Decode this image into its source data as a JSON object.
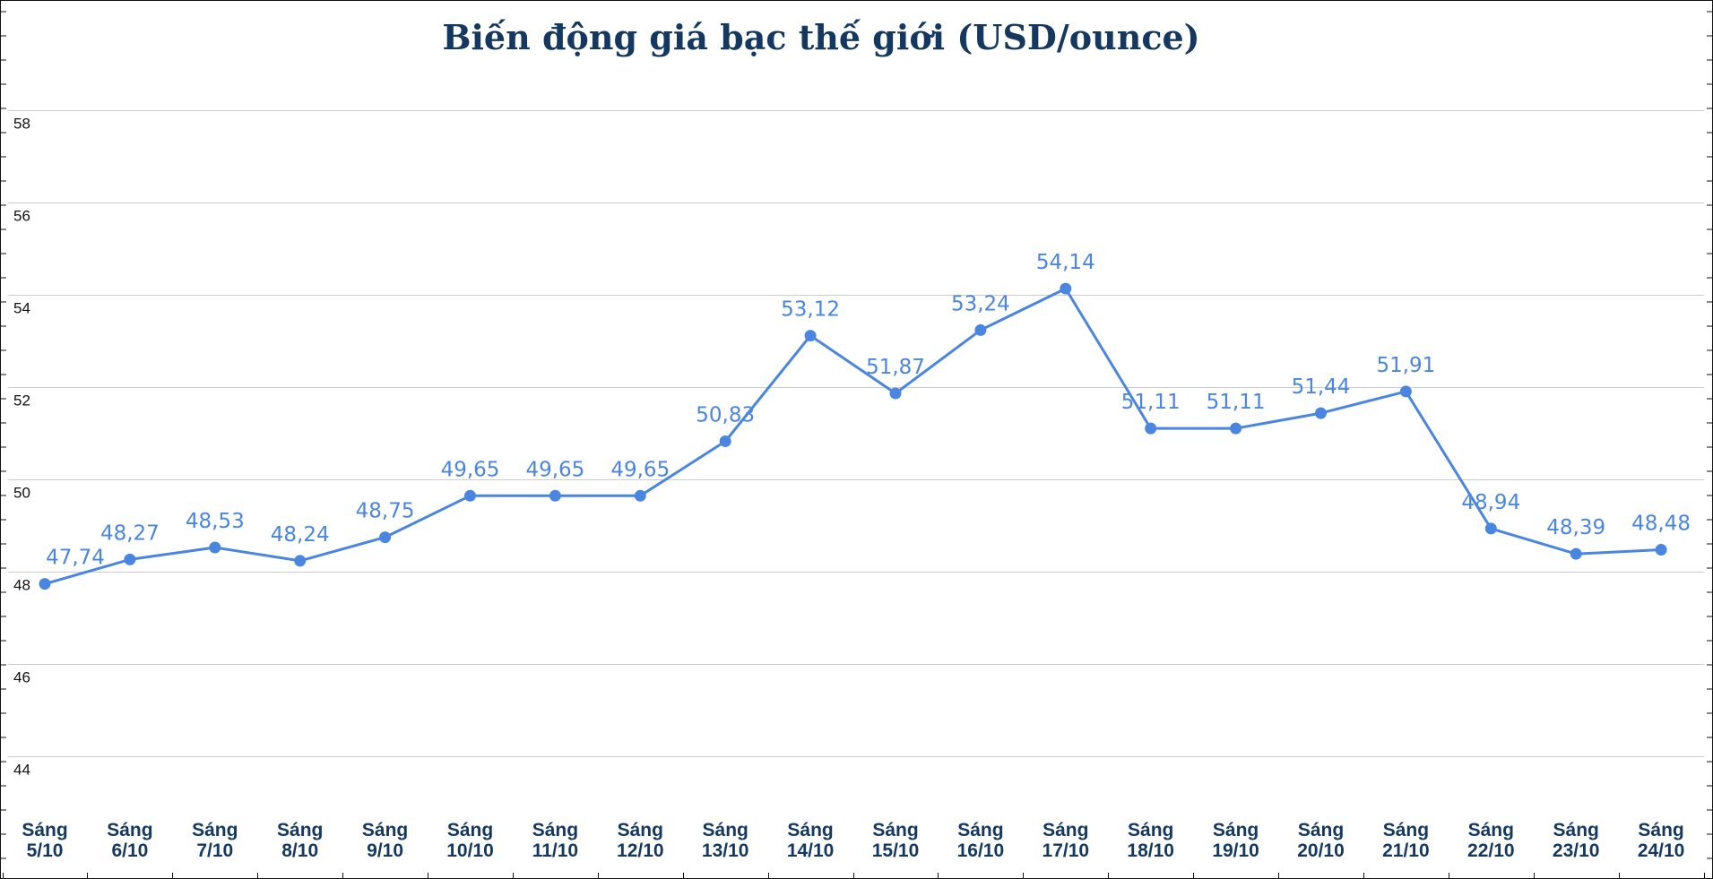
{
  "chart_data": {
    "type": "line",
    "title": "Biến động giá bạc thế giới (USD/ounce)",
    "xlabel": "",
    "ylabel": "",
    "ylim": [
      43.5,
      58.2
    ],
    "y_ticks": [
      "44",
      "46",
      "48",
      "50",
      "52",
      "54",
      "56",
      "58"
    ],
    "y_tick_values": [
      44,
      46,
      48,
      50,
      52,
      54,
      56,
      58
    ],
    "grid": true,
    "legend": "none",
    "categories": [
      [
        "Sáng",
        "5/10"
      ],
      [
        "Sáng",
        "6/10"
      ],
      [
        "Sáng",
        "7/10"
      ],
      [
        "Sáng",
        "8/10"
      ],
      [
        "Sáng",
        "9/10"
      ],
      [
        "Sáng",
        "10/10"
      ],
      [
        "Sáng",
        "11/10"
      ],
      [
        "Sáng",
        "12/10"
      ],
      [
        "Sáng",
        "13/10"
      ],
      [
        "Sáng",
        "14/10"
      ],
      [
        "Sáng",
        "15/10"
      ],
      [
        "Sáng",
        "16/10"
      ],
      [
        "Sáng",
        "17/10"
      ],
      [
        "Sáng",
        "18/10"
      ],
      [
        "Sáng",
        "19/10"
      ],
      [
        "Sáng",
        "20/10"
      ],
      [
        "Sáng",
        "21/10"
      ],
      [
        "Sáng",
        "22/10"
      ],
      [
        "Sáng",
        "23/10"
      ],
      [
        "Sáng",
        "24/10"
      ]
    ],
    "series": [
      {
        "values": [
          47.74,
          48.27,
          48.53,
          48.24,
          48.75,
          49.65,
          49.65,
          49.65,
          50.83,
          53.12,
          51.87,
          53.24,
          54.14,
          51.11,
          51.11,
          51.44,
          51.91,
          48.94,
          48.39,
          48.48
        ],
        "labels": [
          "47,74",
          "48,27",
          "48,53",
          "48,24",
          "48,75",
          "49,65",
          "49,65",
          "49,65",
          "50,83",
          "53,12",
          "51,87",
          "53,24",
          "54,14",
          "51,11",
          "51,11",
          "51,44",
          "51,91",
          "48,94",
          "48,39",
          "48,48"
        ],
        "color": "#4a86e0"
      }
    ]
  },
  "colors": {
    "line": "#4a86e0",
    "title": "#14385f",
    "grid": "#cccccc",
    "axis_text": "#111111"
  }
}
